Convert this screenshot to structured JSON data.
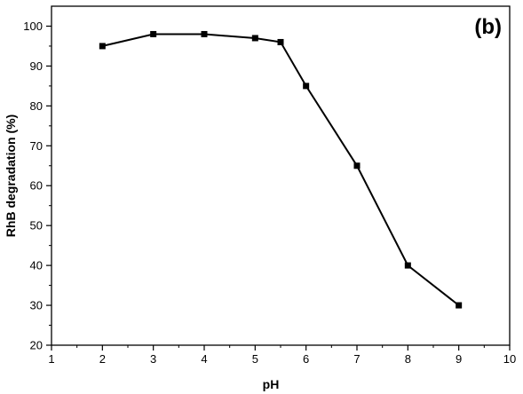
{
  "chart_data": {
    "type": "line",
    "panel_label": "(b)",
    "xlabel": "pH",
    "ylabel": "RhB degradation (%)",
    "xlim": [
      1,
      10
    ],
    "ylim": [
      20,
      105
    ],
    "x_ticks": [
      "1",
      "2",
      "3",
      "4",
      "5",
      "6",
      "7",
      "8",
      "9",
      "10"
    ],
    "y_ticks": [
      "20",
      "30",
      "40",
      "50",
      "60",
      "70",
      "80",
      "90",
      "100"
    ],
    "grid": false,
    "legend": "none",
    "series": [
      {
        "marker": "square",
        "color": "#000000",
        "x": [
          2,
          3,
          4,
          5,
          5.5,
          6,
          7,
          8,
          9
        ],
        "y": [
          95,
          98,
          98,
          97,
          96,
          85,
          65,
          40,
          30
        ]
      }
    ]
  }
}
